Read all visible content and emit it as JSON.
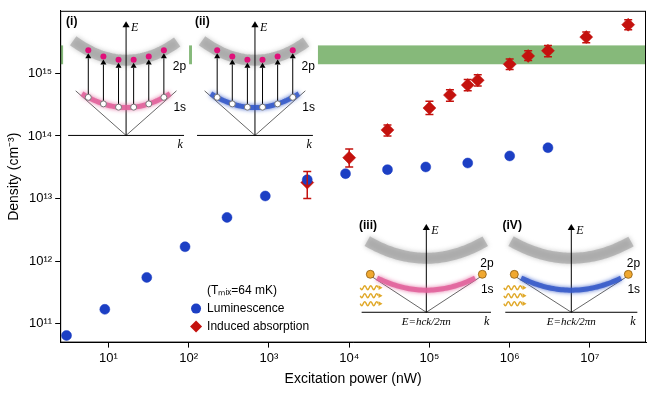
{
  "chart_data": {
    "type": "scatter",
    "xlabel": "Excitation power (nW)",
    "ylabel": "Density (cm⁻³)",
    "log": true,
    "grid": false,
    "xlim": [
      2.5,
      50000000
    ],
    "ylim": [
      50000000000,
      10000000000000000
    ],
    "xticks": [
      {
        "value": 10,
        "label": "10¹"
      },
      {
        "value": 100,
        "label": "10²"
      },
      {
        "value": 1000,
        "label": "10³"
      },
      {
        "value": 10000,
        "label": "10⁴"
      },
      {
        "value": 100000,
        "label": "10⁵"
      },
      {
        "value": 1000000,
        "label": "10⁶"
      },
      {
        "value": 10000000,
        "label": "10⁷"
      }
    ],
    "yticks": [
      {
        "value": 100000000000,
        "label": "10¹¹"
      },
      {
        "value": 1000000000000,
        "label": "10¹²"
      },
      {
        "value": 10000000000000,
        "label": "10¹³"
      },
      {
        "value": 100000000000000,
        "label": "10¹⁴"
      },
      {
        "value": 1000000000000000,
        "label": "10¹⁵"
      }
    ],
    "legend": "lower left",
    "legend_title": "(Tₘᵢₓ=64 mK)",
    "band": {
      "ylim": [
        1400000000000000,
        2800000000000000
      ],
      "color": "#86b97a"
    },
    "series": [
      {
        "name": "Luminescence",
        "color": "#1c3fc4",
        "marker": "circle",
        "x": [
          3,
          9,
          30,
          90,
          300,
          900,
          3000,
          9000,
          30000,
          90000,
          300000,
          1000000,
          3000000
        ],
        "values": [
          65000000000,
          170000000000,
          550000000000,
          1700000000000,
          5000000000000,
          11000000000000,
          20000000000000,
          25000000000000,
          29000000000000,
          32000000000000,
          37000000000000,
          48000000000000,
          65000000000000
        ]
      },
      {
        "name": "Induced absorption",
        "color": "#c4120e",
        "marker": "diamond",
        "x": [
          3000,
          10000,
          30000,
          100000,
          180000,
          300000,
          400000,
          1000000,
          1700000,
          3000000,
          9000000,
          30000000
        ],
        "values": [
          18000000000000,
          45000000000000,
          125000000000000,
          280000000000000,
          450000000000000,
          650000000000000,
          780000000000000,
          1400000000000000,
          1900000000000000,
          2300000000000000,
          3800000000000000,
          6000000000000000
        ],
        "error_bars": [
          [
            10000000000000,
            27000000000000
          ],
          [
            32000000000000,
            62000000000000
          ],
          [
            100000000000000,
            150000000000000
          ],
          [
            220000000000000,
            360000000000000
          ],
          [
            360000000000000,
            550000000000000
          ],
          [
            530000000000000,
            800000000000000
          ],
          [
            630000000000000,
            950000000000000
          ],
          [
            1150000000000000,
            1700000000000000
          ],
          [
            1600000000000000,
            2300000000000000
          ],
          [
            1850000000000000,
            2800000000000000
          ],
          [
            3100000000000000,
            4600000000000000
          ],
          [
            5000000000000000,
            7200000000000000
          ]
        ]
      }
    ],
    "insets": [
      {
        "label": "(i)",
        "type": "absorption",
        "color": "#e0609a",
        "energy_label": "E",
        "momentum_label": "k",
        "upper_label": "2p",
        "lower_label": "1s"
      },
      {
        "label": "(ii)",
        "type": "absorption",
        "color": "#3458c8",
        "energy_label": "E",
        "momentum_label": "k",
        "upper_label": "2p",
        "lower_label": "1s"
      },
      {
        "label": "(iii)",
        "type": "luminescence",
        "color": "#e0609a",
        "energy_label": "E",
        "momentum_label": "k",
        "upper_label": "2p",
        "lower_label": "1s",
        "photon_label": "E=hck/2πn"
      },
      {
        "label": "(iV)",
        "type": "luminescence",
        "color": "#3458c8",
        "energy_label": "E",
        "momentum_label": "k",
        "upper_label": "2p",
        "lower_label": "1s",
        "photon_label": "E=hck/2πn"
      }
    ]
  }
}
